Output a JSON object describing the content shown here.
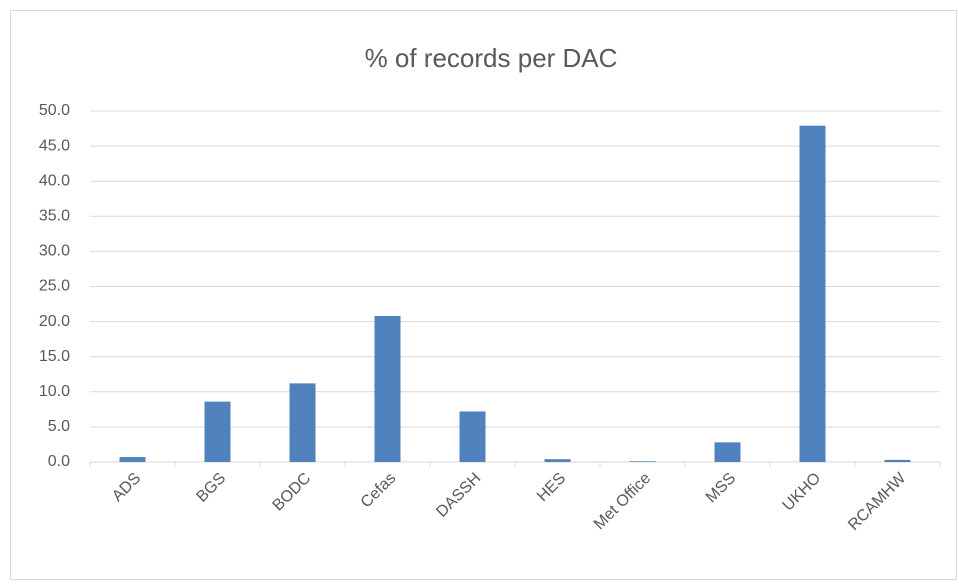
{
  "chart_data": {
    "type": "bar",
    "title": "% of records per DAC",
    "categories": [
      "ADS",
      "BGS",
      "BODC",
      "Cefas",
      "DASSH",
      "HES",
      "Met Office",
      "MSS",
      "UKHO",
      "RCAMHW"
    ],
    "values": [
      0.7,
      8.6,
      11.2,
      20.8,
      7.2,
      0.4,
      0.1,
      2.8,
      47.9,
      0.3
    ],
    "color": "#4f81bd",
    "ylim": [
      0,
      50
    ],
    "yticks": [
      {
        "value": 0,
        "label": "0.0"
      },
      {
        "value": 5,
        "label": "5.0"
      },
      {
        "value": 10,
        "label": "10.0"
      },
      {
        "value": 15,
        "label": "15.0"
      },
      {
        "value": 20,
        "label": "20.0"
      },
      {
        "value": 25,
        "label": "25.0"
      },
      {
        "value": 30,
        "label": "30.0"
      },
      {
        "value": 35,
        "label": "35.0"
      },
      {
        "value": 40,
        "label": "40.0"
      },
      {
        "value": 45,
        "label": "45.0"
      },
      {
        "value": 50,
        "label": "50.0"
      }
    ],
    "grid": true
  }
}
